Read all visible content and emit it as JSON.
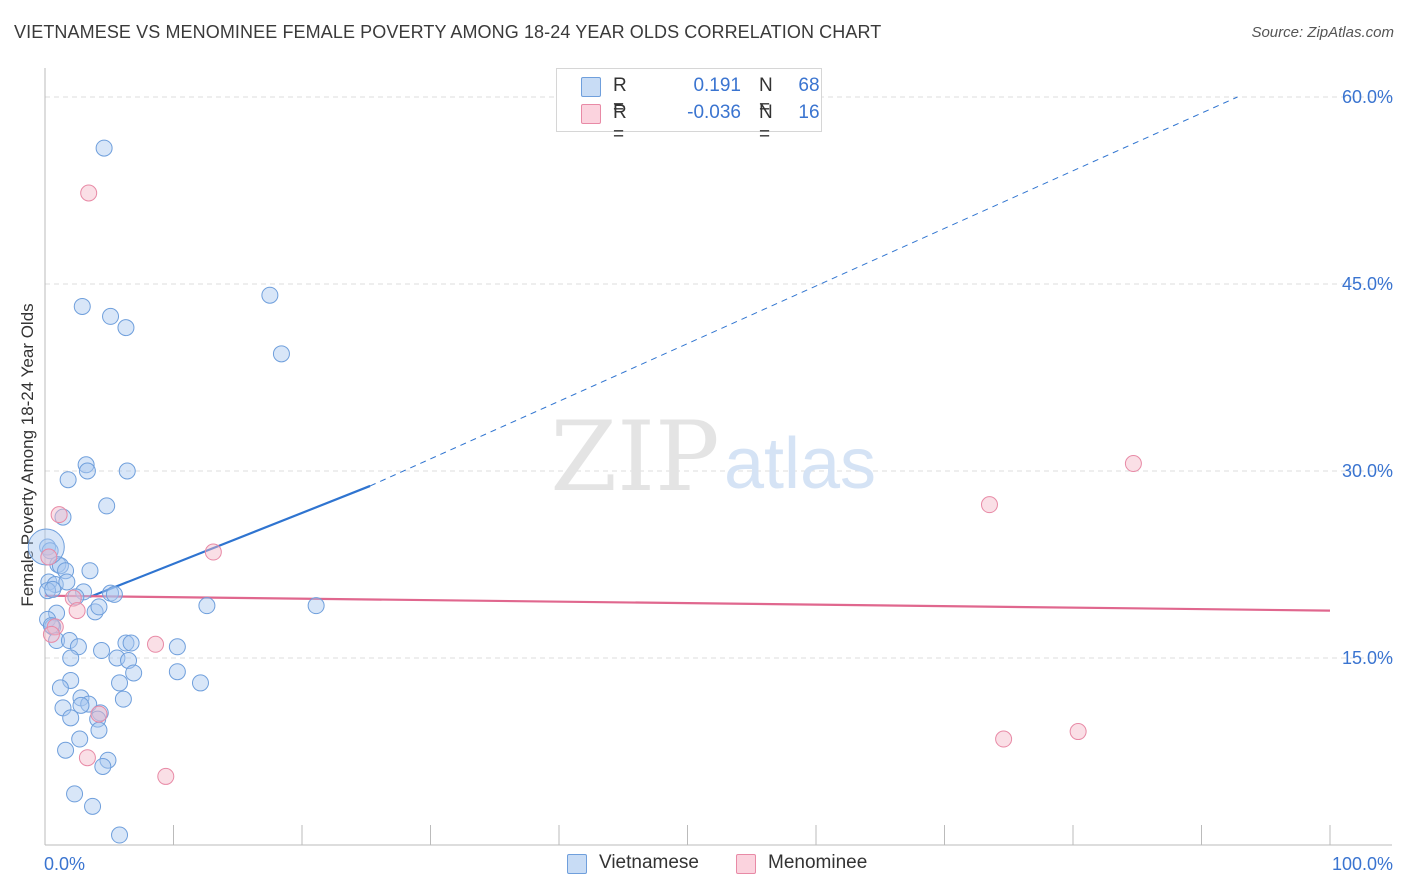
{
  "title": "VIETNAMESE VS MENOMINEE FEMALE POVERTY AMONG 18-24 YEAR OLDS CORRELATION CHART",
  "source": "Source: ZipAtlas.com",
  "watermark": {
    "zip": "ZIP",
    "atlas": "atlas"
  },
  "legend": {
    "rows": [
      {
        "r_label": "R =",
        "r_value": "0.191",
        "n_label": "N =",
        "n_value": "68",
        "color": "#a9c8f0"
      },
      {
        "r_label": "R =",
        "r_value": "-0.036",
        "n_label": "N =",
        "n_value": "16",
        "color": "#f5b8c8"
      }
    ]
  },
  "bottom_legend": [
    {
      "label": "Vietnamese",
      "color": "#a9c8f0"
    },
    {
      "label": "Menominee",
      "color": "#f5b8c8"
    }
  ],
  "colors": {
    "vietnamese_fill": "#a9c8f0",
    "vietnamese_stroke": "#6f9fdc",
    "vietnamese_line": "#2f74d0",
    "menominee_fill": "#f5b8c8",
    "menominee_stroke": "#e88aa6",
    "menominee_line": "#e0678e",
    "tick_label": "#3a74d0",
    "grid": "#dddddd"
  },
  "chart_data": {
    "type": "scatter",
    "title": "VIETNAMESE VS MENOMINEE FEMALE POVERTY AMONG 18-24 YEAR OLDS CORRELATION CHART",
    "xlabel": "",
    "ylabel": "Female Poverty Among 18-24 Year Olds",
    "xlim": [
      0,
      100
    ],
    "ylim": [
      0,
      60
    ],
    "x_tick_labels": [
      {
        "value": 0,
        "label": "0.0%"
      },
      {
        "value": 100,
        "label": "100.0%"
      }
    ],
    "y_tick_labels": [
      {
        "value": 15,
        "label": "15.0%"
      },
      {
        "value": 30,
        "label": "30.0%"
      },
      {
        "value": 45,
        "label": "45.0%"
      },
      {
        "value": 60,
        "label": "60.0%"
      }
    ],
    "series": [
      {
        "name": "Vietnamese",
        "points": [
          [
            4.6,
            55.9
          ],
          [
            2.9,
            43.2
          ],
          [
            5.1,
            42.4
          ],
          [
            6.3,
            41.5
          ],
          [
            17.5,
            44.1
          ],
          [
            18.4,
            39.4
          ],
          [
            1.8,
            29.3
          ],
          [
            3.2,
            30.5
          ],
          [
            3.3,
            30.0
          ],
          [
            6.4,
            30.0
          ],
          [
            4.8,
            27.2
          ],
          [
            1.4,
            26.3
          ],
          [
            0.2,
            23.9
          ],
          [
            0.4,
            23.6
          ],
          [
            1.0,
            22.5
          ],
          [
            1.2,
            22.4
          ],
          [
            1.6,
            22.0
          ],
          [
            3.5,
            22.0
          ],
          [
            0.3,
            21.1
          ],
          [
            0.8,
            20.9
          ],
          [
            1.7,
            21.1
          ],
          [
            0.2,
            20.4
          ],
          [
            0.6,
            20.5
          ],
          [
            3.0,
            20.3
          ],
          [
            2.4,
            19.9
          ],
          [
            5.1,
            20.2
          ],
          [
            5.4,
            20.1
          ],
          [
            0.9,
            18.6
          ],
          [
            3.9,
            18.7
          ],
          [
            4.2,
            19.1
          ],
          [
            12.6,
            19.2
          ],
          [
            21.1,
            19.2
          ],
          [
            0.2,
            18.1
          ],
          [
            0.6,
            17.5
          ],
          [
            0.9,
            16.4
          ],
          [
            1.9,
            16.4
          ],
          [
            2.6,
            15.9
          ],
          [
            6.3,
            16.2
          ],
          [
            6.7,
            16.2
          ],
          [
            10.3,
            15.9
          ],
          [
            4.4,
            15.6
          ],
          [
            2.0,
            15.0
          ],
          [
            5.6,
            15.0
          ],
          [
            6.5,
            14.8
          ],
          [
            6.9,
            13.8
          ],
          [
            10.3,
            13.9
          ],
          [
            2.0,
            13.2
          ],
          [
            1.2,
            12.6
          ],
          [
            5.8,
            13.0
          ],
          [
            12.1,
            13.0
          ],
          [
            2.8,
            11.8
          ],
          [
            6.1,
            11.7
          ],
          [
            3.4,
            11.3
          ],
          [
            1.4,
            11.0
          ],
          [
            2.8,
            11.2
          ],
          [
            4.3,
            10.6
          ],
          [
            4.1,
            10.1
          ],
          [
            2.0,
            10.2
          ],
          [
            4.2,
            9.2
          ],
          [
            2.7,
            8.5
          ],
          [
            1.6,
            7.6
          ],
          [
            4.9,
            6.8
          ],
          [
            4.5,
            6.3
          ],
          [
            2.3,
            4.1
          ],
          [
            3.7,
            3.1
          ],
          [
            5.8,
            0.8
          ],
          [
            0.1,
            23.9
          ],
          [
            0.5,
            17.6
          ]
        ]
      },
      {
        "name": "Menominee",
        "points": [
          [
            3.4,
            52.3
          ],
          [
            1.1,
            26.5
          ],
          [
            13.1,
            23.5
          ],
          [
            0.3,
            23.1
          ],
          [
            2.2,
            19.8
          ],
          [
            2.5,
            18.8
          ],
          [
            0.8,
            17.5
          ],
          [
            8.6,
            16.1
          ],
          [
            4.2,
            10.5
          ],
          [
            3.3,
            7.0
          ],
          [
            9.4,
            5.5
          ],
          [
            73.5,
            27.3
          ],
          [
            84.7,
            30.6
          ],
          [
            74.6,
            8.5
          ],
          [
            80.4,
            9.1
          ],
          [
            0.5,
            16.9
          ]
        ]
      }
    ],
    "trend_lines": [
      {
        "series": "Vietnamese",
        "solid": [
          [
            3.5,
            19.9
          ],
          [
            25.3,
            28.8
          ]
        ],
        "dashed": [
          [
            25.3,
            28.8
          ],
          [
            92.8,
            60.0
          ]
        ]
      },
      {
        "series": "Menominee",
        "solid": [
          [
            0.0,
            20.0
          ],
          [
            100.0,
            18.8
          ]
        ]
      }
    ]
  }
}
